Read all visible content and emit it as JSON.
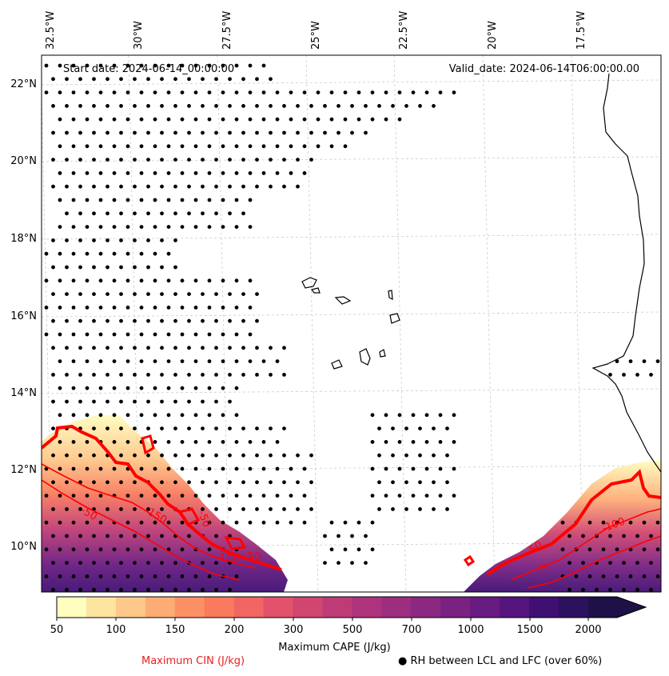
{
  "header": {
    "start_date": "Start date: 2024-06-14_00:00:00",
    "valid_date": "Valid_date: 2024-06-14T06:00:00.00"
  },
  "map": {
    "lon_labels": [
      "32.5°W",
      "30°W",
      "27.5°W",
      "25°W",
      "22.5°W",
      "20°W",
      "17.5°W"
    ],
    "lat_labels": [
      "22°N",
      "20°N",
      "18°N",
      "16°N",
      "14°N",
      "12°N",
      "10°N"
    ],
    "lon_range": [
      -32.5,
      -15.5
    ],
    "lat_range": [
      8.9,
      22.7
    ],
    "gridlines": true
  },
  "cin_contours": {
    "color": "#ff0000",
    "labels": [
      "-50",
      "-150",
      "-50",
      "-100",
      "-50",
      "-100",
      "-50",
      "-5"
    ]
  },
  "colorbar": {
    "ticks": [
      "50",
      "100",
      "150",
      "200",
      "300",
      "500",
      "700",
      "1000",
      "1500",
      "2000"
    ],
    "colors": [
      "#fffdbf",
      "#fee4a1",
      "#fec88a",
      "#feac76",
      "#fc9065",
      "#f97a5d",
      "#f16663",
      "#e2526c",
      "#d04670",
      "#be3c76",
      "#ad347c",
      "#9c2e7f",
      "#8b2881",
      "#792282",
      "#681b81",
      "#55137d",
      "#3f0f72",
      "#2b115e",
      "#1d1147"
    ],
    "extend": "max",
    "label": "Maximum CAPE (J/kg)"
  },
  "legend": {
    "cin": "Maximum CIN (J/kg)",
    "cin_color": "#e8201f",
    "rh": "● RH between LCL and LFC (over 60%)"
  }
}
